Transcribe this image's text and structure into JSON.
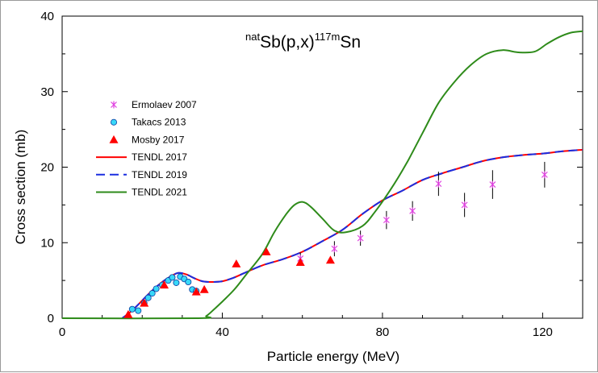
{
  "chart_data": {
    "type": "scatter",
    "title": {
      "prefix": "nat",
      "main": "Sb(p,x)",
      "sup": "117m",
      "suffix": "Sn"
    },
    "xlabel": "Particle energy (MeV)",
    "ylabel": "Cross section (mb)",
    "xlim": [
      0,
      130
    ],
    "ylim": [
      0,
      40
    ],
    "xticks": [
      0,
      40,
      80,
      120
    ],
    "yticks": [
      0,
      10,
      20,
      30,
      40
    ],
    "xtick_labels": [
      "0",
      "40",
      "80",
      "120"
    ],
    "ytick_labels": [
      "0",
      "10",
      "20",
      "30",
      "40"
    ],
    "grid": false,
    "legend_position": "left",
    "series": [
      {
        "name": "Ermolaev 2007",
        "kind": "points",
        "marker": "star",
        "color": "#e040e0",
        "points": [
          {
            "x": 59.5,
            "y": 7.9,
            "err": 0.8
          },
          {
            "x": 68.0,
            "y": 9.2,
            "err": 1.0
          },
          {
            "x": 74.5,
            "y": 10.6,
            "err": 1.0
          },
          {
            "x": 81.0,
            "y": 13.0,
            "err": 1.2
          },
          {
            "x": 87.5,
            "y": 14.2,
            "err": 1.3
          },
          {
            "x": 94.0,
            "y": 17.8,
            "err": 1.6
          },
          {
            "x": 100.5,
            "y": 15.0,
            "err": 1.6
          },
          {
            "x": 107.5,
            "y": 17.7,
            "err": 1.9
          },
          {
            "x": 120.5,
            "y": 19.0,
            "err": 1.7
          }
        ]
      },
      {
        "name": "Takacs 2013",
        "kind": "points",
        "marker": "circle",
        "color": "#38d8f8",
        "points": [
          {
            "x": 17.5,
            "y": 1.2
          },
          {
            "x": 19.0,
            "y": 1.0
          },
          {
            "x": 20.5,
            "y": 2.0
          },
          {
            "x": 21.5,
            "y": 2.7
          },
          {
            "x": 22.5,
            "y": 3.3
          },
          {
            "x": 23.5,
            "y": 3.9
          },
          {
            "x": 25.0,
            "y": 4.4
          },
          {
            "x": 26.5,
            "y": 5.0
          },
          {
            "x": 27.5,
            "y": 5.4
          },
          {
            "x": 28.5,
            "y": 4.7
          },
          {
            "x": 29.5,
            "y": 5.5
          },
          {
            "x": 30.5,
            "y": 5.2
          },
          {
            "x": 31.5,
            "y": 4.8
          },
          {
            "x": 32.5,
            "y": 3.8
          },
          {
            "x": 33.5,
            "y": 3.6
          }
        ]
      },
      {
        "name": "Mosby 2017",
        "kind": "points",
        "marker": "triangle",
        "color": "#ff0000",
        "points": [
          {
            "x": 16.5,
            "y": 0.5
          },
          {
            "x": 20.5,
            "y": 2.0
          },
          {
            "x": 25.5,
            "y": 4.4
          },
          {
            "x": 33.5,
            "y": 3.5
          },
          {
            "x": 35.5,
            "y": 3.8
          },
          {
            "x": 43.5,
            "y": 7.2
          },
          {
            "x": 51.0,
            "y": 8.8
          },
          {
            "x": 59.5,
            "y": 7.4
          },
          {
            "x": 67.0,
            "y": 7.7
          }
        ]
      },
      {
        "name": "TENDL 2017",
        "kind": "line",
        "color": "#ff0000",
        "dash": "",
        "x": [
          15,
          17,
          19,
          21,
          23,
          25,
          27,
          29,
          31,
          33,
          35,
          37,
          40,
          43,
          46,
          50,
          55,
          60,
          65,
          70,
          75,
          80,
          85,
          90,
          95,
          100,
          105,
          110,
          115,
          120,
          125,
          130
        ],
        "y": [
          0,
          0.8,
          1.8,
          2.9,
          3.9,
          4.8,
          5.5,
          6.0,
          5.8,
          5.3,
          4.9,
          4.8,
          4.9,
          5.4,
          6.1,
          7.0,
          7.8,
          8.8,
          10.2,
          11.7,
          13.8,
          15.6,
          16.9,
          18.3,
          19.2,
          20.0,
          20.8,
          21.3,
          21.6,
          21.8,
          22.1,
          22.3
        ]
      },
      {
        "name": "TENDL 2019",
        "kind": "line",
        "color": "#1a2ee0",
        "dash": "11,6",
        "x": [
          15,
          17,
          19,
          21,
          23,
          25,
          27,
          29,
          31,
          33,
          35,
          37,
          40,
          43,
          46,
          50,
          55,
          60,
          65,
          70,
          75,
          80,
          85,
          90,
          95,
          100,
          105,
          110,
          115,
          120,
          125,
          130
        ],
        "y": [
          0,
          0.8,
          1.8,
          2.9,
          3.9,
          4.8,
          5.5,
          6.0,
          5.8,
          5.3,
          4.9,
          4.8,
          4.9,
          5.4,
          6.1,
          7.0,
          7.8,
          8.8,
          10.2,
          11.7,
          13.8,
          15.6,
          16.9,
          18.3,
          19.2,
          20.0,
          20.8,
          21.3,
          21.6,
          21.8,
          22.1,
          22.3
        ]
      },
      {
        "name": "TENDL 2021",
        "kind": "line",
        "color": "#2e8b1a",
        "dash": "",
        "x": [
          0,
          34,
          36,
          38,
          40,
          43,
          46,
          50,
          53,
          56,
          58,
          60,
          62,
          65,
          68,
          71,
          75,
          78,
          82,
          86,
          90,
          94,
          98,
          102,
          106,
          110,
          114,
          118,
          121,
          124,
          127,
          130
        ],
        "y": [
          0,
          0,
          0.3,
          1.2,
          2.2,
          3.8,
          5.8,
          8.5,
          11.4,
          13.8,
          15.0,
          15.4,
          14.8,
          13.2,
          11.6,
          11.4,
          12.2,
          14.0,
          17.0,
          20.5,
          24.5,
          28.5,
          31.3,
          33.5,
          35.0,
          35.5,
          35.2,
          35.3,
          36.3,
          37.2,
          37.8,
          38.0
        ]
      }
    ]
  }
}
